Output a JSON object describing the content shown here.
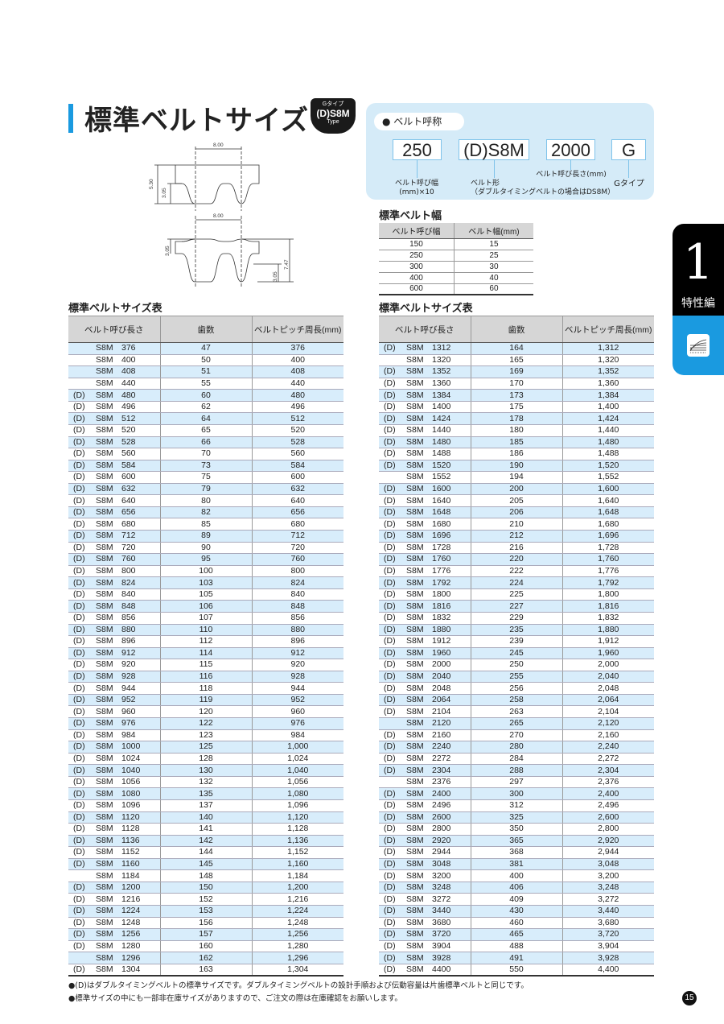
{
  "title": "標準ベルトサイズ",
  "badge": {
    "top": "Gタイプ",
    "main": "(D)S8M",
    "bottom": "Type"
  },
  "diagram": {
    "pitch": "8.00",
    "height_total": "5.30",
    "tooth_height": "3.05",
    "double_height": "7.47"
  },
  "designation": {
    "pill": "● ベルト呼称",
    "parts": [
      "250",
      "(D)S8M",
      "2000",
      "G"
    ],
    "labels": [
      "ベルト呼び幅\n(mm)×10",
      "ベルト形\n（ダブルタイミングベルトの場合はDS8M）",
      "ベルト呼び長さ(mm)",
      "Gタイプ"
    ]
  },
  "width_table": {
    "title": "標準ベルト幅",
    "headers": [
      "ベルト呼び幅",
      "ベルト幅(mm)"
    ],
    "rows": [
      [
        "150",
        "15"
      ],
      [
        "250",
        "25"
      ],
      [
        "300",
        "30"
      ],
      [
        "400",
        "40"
      ],
      [
        "600",
        "60"
      ]
    ]
  },
  "size_table_title": "標準ベルトサイズ表",
  "size_headers": [
    "ベルト呼び長さ",
    "歯数",
    "ベルトピッチ周長(mm)"
  ],
  "left_rows": [
    [
      "",
      "S8M",
      "376",
      "47",
      "376"
    ],
    [
      "",
      "S8M",
      "400",
      "50",
      "400"
    ],
    [
      "",
      "S8M",
      "408",
      "51",
      "408"
    ],
    [
      "",
      "S8M",
      "440",
      "55",
      "440"
    ],
    [
      "(D)",
      "S8M",
      "480",
      "60",
      "480"
    ],
    [
      "(D)",
      "S8M",
      "496",
      "62",
      "496"
    ],
    [
      "(D)",
      "S8M",
      "512",
      "64",
      "512"
    ],
    [
      "(D)",
      "S8M",
      "520",
      "65",
      "520"
    ],
    [
      "(D)",
      "S8M",
      "528",
      "66",
      "528"
    ],
    [
      "(D)",
      "S8M",
      "560",
      "70",
      "560"
    ],
    [
      "(D)",
      "S8M",
      "584",
      "73",
      "584"
    ],
    [
      "(D)",
      "S8M",
      "600",
      "75",
      "600"
    ],
    [
      "(D)",
      "S8M",
      "632",
      "79",
      "632"
    ],
    [
      "(D)",
      "S8M",
      "640",
      "80",
      "640"
    ],
    [
      "(D)",
      "S8M",
      "656",
      "82",
      "656"
    ],
    [
      "(D)",
      "S8M",
      "680",
      "85",
      "680"
    ],
    [
      "(D)",
      "S8M",
      "712",
      "89",
      "712"
    ],
    [
      "(D)",
      "S8M",
      "720",
      "90",
      "720"
    ],
    [
      "(D)",
      "S8M",
      "760",
      "95",
      "760"
    ],
    [
      "(D)",
      "S8M",
      "800",
      "100",
      "800"
    ],
    [
      "(D)",
      "S8M",
      "824",
      "103",
      "824"
    ],
    [
      "(D)",
      "S8M",
      "840",
      "105",
      "840"
    ],
    [
      "(D)",
      "S8M",
      "848",
      "106",
      "848"
    ],
    [
      "(D)",
      "S8M",
      "856",
      "107",
      "856"
    ],
    [
      "(D)",
      "S8M",
      "880",
      "110",
      "880"
    ],
    [
      "(D)",
      "S8M",
      "896",
      "112",
      "896"
    ],
    [
      "(D)",
      "S8M",
      "912",
      "114",
      "912"
    ],
    [
      "(D)",
      "S8M",
      "920",
      "115",
      "920"
    ],
    [
      "(D)",
      "S8M",
      "928",
      "116",
      "928"
    ],
    [
      "(D)",
      "S8M",
      "944",
      "118",
      "944"
    ],
    [
      "(D)",
      "S8M",
      "952",
      "119",
      "952"
    ],
    [
      "(D)",
      "S8M",
      "960",
      "120",
      "960"
    ],
    [
      "(D)",
      "S8M",
      "976",
      "122",
      "976"
    ],
    [
      "(D)",
      "S8M",
      "984",
      "123",
      "984"
    ],
    [
      "(D)",
      "S8M",
      "1000",
      "125",
      "1,000"
    ],
    [
      "(D)",
      "S8M",
      "1024",
      "128",
      "1,024"
    ],
    [
      "(D)",
      "S8M",
      "1040",
      "130",
      "1,040"
    ],
    [
      "(D)",
      "S8M",
      "1056",
      "132",
      "1,056"
    ],
    [
      "(D)",
      "S8M",
      "1080",
      "135",
      "1,080"
    ],
    [
      "(D)",
      "S8M",
      "1096",
      "137",
      "1,096"
    ],
    [
      "(D)",
      "S8M",
      "1120",
      "140",
      "1,120"
    ],
    [
      "(D)",
      "S8M",
      "1128",
      "141",
      "1,128"
    ],
    [
      "(D)",
      "S8M",
      "1136",
      "142",
      "1,136"
    ],
    [
      "(D)",
      "S8M",
      "1152",
      "144",
      "1,152"
    ],
    [
      "(D)",
      "S8M",
      "1160",
      "145",
      "1,160"
    ],
    [
      "",
      "S8M",
      "1184",
      "148",
      "1,184"
    ],
    [
      "(D)",
      "S8M",
      "1200",
      "150",
      "1,200"
    ],
    [
      "(D)",
      "S8M",
      "1216",
      "152",
      "1,216"
    ],
    [
      "(D)",
      "S8M",
      "1224",
      "153",
      "1,224"
    ],
    [
      "(D)",
      "S8M",
      "1248",
      "156",
      "1,248"
    ],
    [
      "(D)",
      "S8M",
      "1256",
      "157",
      "1,256"
    ],
    [
      "(D)",
      "S8M",
      "1280",
      "160",
      "1,280"
    ],
    [
      "",
      "S8M",
      "1296",
      "162",
      "1,296"
    ],
    [
      "(D)",
      "S8M",
      "1304",
      "163",
      "1,304"
    ]
  ],
  "right_rows": [
    [
      "(D)",
      "S8M",
      "1312",
      "164",
      "1,312"
    ],
    [
      "",
      "S8M",
      "1320",
      "165",
      "1,320"
    ],
    [
      "(D)",
      "S8M",
      "1352",
      "169",
      "1,352"
    ],
    [
      "(D)",
      "S8M",
      "1360",
      "170",
      "1,360"
    ],
    [
      "(D)",
      "S8M",
      "1384",
      "173",
      "1,384"
    ],
    [
      "(D)",
      "S8M",
      "1400",
      "175",
      "1,400"
    ],
    [
      "(D)",
      "S8M",
      "1424",
      "178",
      "1,424"
    ],
    [
      "(D)",
      "S8M",
      "1440",
      "180",
      "1,440"
    ],
    [
      "(D)",
      "S8M",
      "1480",
      "185",
      "1,480"
    ],
    [
      "(D)",
      "S8M",
      "1488",
      "186",
      "1,488"
    ],
    [
      "(D)",
      "S8M",
      "1520",
      "190",
      "1,520"
    ],
    [
      "",
      "S8M",
      "1552",
      "194",
      "1,552"
    ],
    [
      "(D)",
      "S8M",
      "1600",
      "200",
      "1,600"
    ],
    [
      "(D)",
      "S8M",
      "1640",
      "205",
      "1,640"
    ],
    [
      "(D)",
      "S8M",
      "1648",
      "206",
      "1,648"
    ],
    [
      "(D)",
      "S8M",
      "1680",
      "210",
      "1,680"
    ],
    [
      "(D)",
      "S8M",
      "1696",
      "212",
      "1,696"
    ],
    [
      "(D)",
      "S8M",
      "1728",
      "216",
      "1,728"
    ],
    [
      "(D)",
      "S8M",
      "1760",
      "220",
      "1,760"
    ],
    [
      "(D)",
      "S8M",
      "1776",
      "222",
      "1,776"
    ],
    [
      "(D)",
      "S8M",
      "1792",
      "224",
      "1,792"
    ],
    [
      "(D)",
      "S8M",
      "1800",
      "225",
      "1,800"
    ],
    [
      "(D)",
      "S8M",
      "1816",
      "227",
      "1,816"
    ],
    [
      "(D)",
      "S8M",
      "1832",
      "229",
      "1,832"
    ],
    [
      "(D)",
      "S8M",
      "1880",
      "235",
      "1,880"
    ],
    [
      "(D)",
      "S8M",
      "1912",
      "239",
      "1,912"
    ],
    [
      "(D)",
      "S8M",
      "1960",
      "245",
      "1,960"
    ],
    [
      "(D)",
      "S8M",
      "2000",
      "250",
      "2,000"
    ],
    [
      "(D)",
      "S8M",
      "2040",
      "255",
      "2,040"
    ],
    [
      "(D)",
      "S8M",
      "2048",
      "256",
      "2,048"
    ],
    [
      "(D)",
      "S8M",
      "2064",
      "258",
      "2,064"
    ],
    [
      "(D)",
      "S8M",
      "2104",
      "263",
      "2,104"
    ],
    [
      "",
      "S8M",
      "2120",
      "265",
      "2,120"
    ],
    [
      "(D)",
      "S8M",
      "2160",
      "270",
      "2,160"
    ],
    [
      "(D)",
      "S8M",
      "2240",
      "280",
      "2,240"
    ],
    [
      "(D)",
      "S8M",
      "2272",
      "284",
      "2,272"
    ],
    [
      "(D)",
      "S8M",
      "2304",
      "288",
      "2,304"
    ],
    [
      "",
      "S8M",
      "2376",
      "297",
      "2,376"
    ],
    [
      "(D)",
      "S8M",
      "2400",
      "300",
      "2,400"
    ],
    [
      "(D)",
      "S8M",
      "2496",
      "312",
      "2,496"
    ],
    [
      "(D)",
      "S8M",
      "2600",
      "325",
      "2,600"
    ],
    [
      "(D)",
      "S8M",
      "2800",
      "350",
      "2,800"
    ],
    [
      "(D)",
      "S8M",
      "2920",
      "365",
      "2,920"
    ],
    [
      "(D)",
      "S8M",
      "2944",
      "368",
      "2,944"
    ],
    [
      "(D)",
      "S8M",
      "3048",
      "381",
      "3,048"
    ],
    [
      "(D)",
      "S8M",
      "3200",
      "400",
      "3,200"
    ],
    [
      "(D)",
      "S8M",
      "3248",
      "406",
      "3,248"
    ],
    [
      "(D)",
      "S8M",
      "3272",
      "409",
      "3,272"
    ],
    [
      "(D)",
      "S8M",
      "3440",
      "430",
      "3,440"
    ],
    [
      "(D)",
      "S8M",
      "3680",
      "460",
      "3,680"
    ],
    [
      "(D)",
      "S8M",
      "3720",
      "465",
      "3,720"
    ],
    [
      "(D)",
      "S8M",
      "3904",
      "488",
      "3,904"
    ],
    [
      "(D)",
      "S8M",
      "3928",
      "491",
      "3,928"
    ],
    [
      "(D)",
      "S8M",
      "4400",
      "550",
      "4,400"
    ]
  ],
  "notes": [
    "●(D)はダブルタイミングベルトの標準サイズです。ダブルタイミングベルトの設計手順および伝動容量は片歯標準ベルトと同じです。",
    "●標準サイズの中にも一部非在庫サイズがありますので、ご注文の際は在庫確認をお願いします。"
  ],
  "side_tab": {
    "number": "1",
    "label": "特性編",
    "icon": "characteristic-graph-icon"
  },
  "page_number": "15",
  "colors": {
    "accent": "#1a9ae0",
    "row_highlight": "#d8edfb",
    "panel": "#d5ebf8"
  }
}
